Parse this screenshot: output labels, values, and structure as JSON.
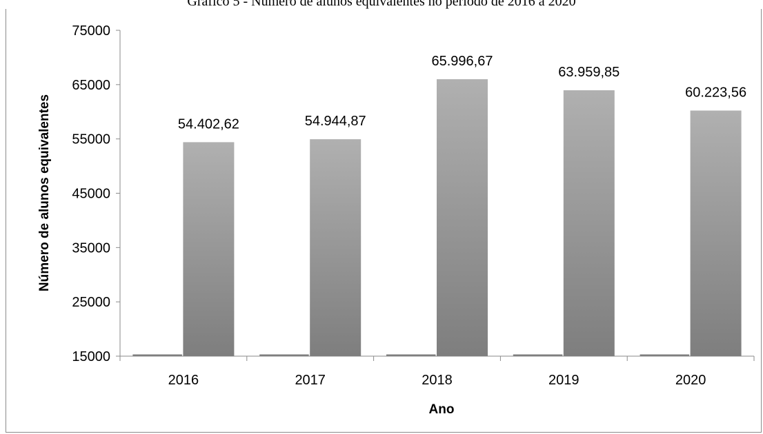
{
  "chart_data": {
    "type": "bar",
    "title": "Gráfico 5 - Número de alunos equivalentes no período de 2016 a 2020",
    "xlabel": "Ano",
    "ylabel": "Número de alunos equivalentes",
    "categories": [
      "2016",
      "2017",
      "2018",
      "2019",
      "2020"
    ],
    "values": [
      54402.62,
      54944.87,
      65996.67,
      63959.85,
      60223.56
    ],
    "data_labels": [
      "54.402,62",
      "54.944,87",
      "65.996,67",
      "63.959,85",
      "60.223,56"
    ],
    "ylim": [
      15000,
      75000
    ],
    "yticks": [
      15000,
      25000,
      35000,
      45000,
      55000,
      65000,
      75000
    ],
    "ytick_labels": [
      "15000",
      "25000",
      "35000",
      "45000",
      "55000",
      "65000",
      "75000"
    ],
    "grid": false,
    "legend": "none",
    "bar_color": "#a6a6a6"
  }
}
